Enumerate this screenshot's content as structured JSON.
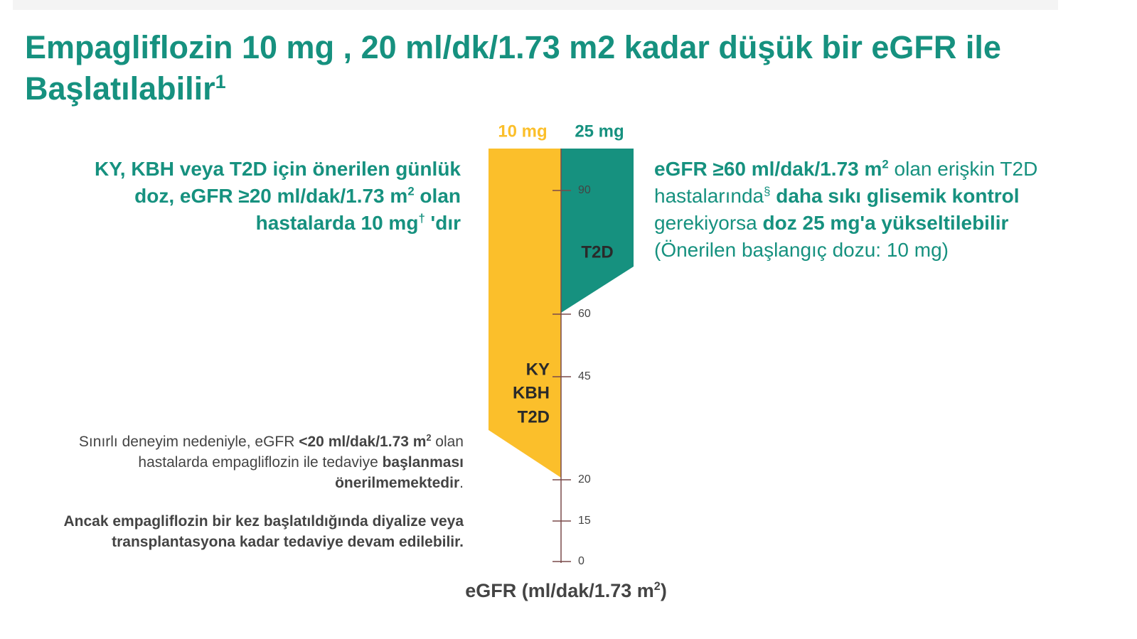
{
  "title": {
    "main": "Empagliflozin 10 mg , 20 ml/dk/1.73 m2 kadar düşük bir eGFR ile Başlatılabilir",
    "sup": "1"
  },
  "doses": [
    "10 mg",
    "25 mg"
  ],
  "left_text": [
    "KY, KBH veya T2D için önerilen günlük doz, eGFR ≥20 ml/dak/1.73 m",
    "2",
    " olan hastalarda 10 mg",
    "†",
    " 'dır"
  ],
  "right_text": [
    "eGFR ≥60 ml/dak/1.73 m",
    "2",
    " olan erişkin T2D hastalarında",
    "§",
    " daha sıkı glisemik kontrol",
    " gerekiyorsa ",
    "doz 25 mg'a yükseltilebilir",
    "(Önerilen başlangıç dozu: 10 mg)"
  ],
  "bar_labels": {
    "teal": "T2D",
    "yellow": [
      "KY",
      "KBH",
      "T2D"
    ]
  },
  "axis_ticks": [
    90,
    60,
    45,
    20,
    15,
    0
  ],
  "axis_label": [
    "eGFR (ml/dak/1.73 m",
    "2",
    ")"
  ],
  "note1": [
    "Sınırlı deneyim nedeniyle, eGFR ",
    "<20 ml/dak/1.73 m",
    "2",
    " olan hastalarda empagliflozin ile tedaviye ",
    "başlanması önerilmemektedir",
    "."
  ],
  "note2": "Ancak empagliflozin bir kez başlatıldığında diyalize veya transplantasyona kadar tedaviye devam edilebilir."
}
